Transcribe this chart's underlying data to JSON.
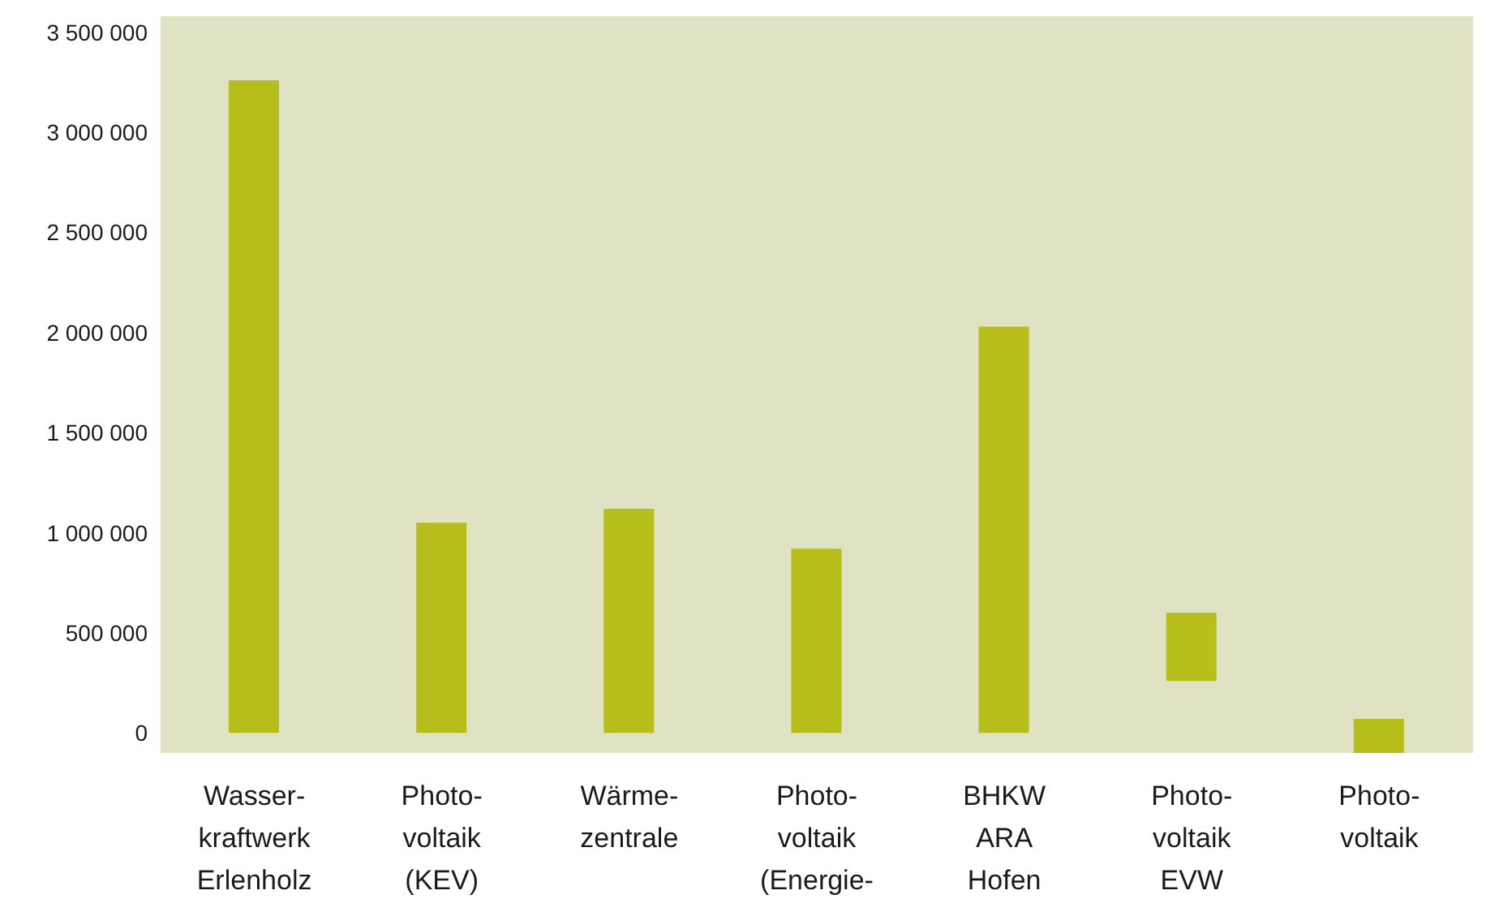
{
  "chart_data": {
    "type": "bar",
    "categories": [
      "Wasser-\nkraftwerk\nErlenholz",
      "Photo-\nvoltaik\n(KEV)",
      "Wärme-\nzentrale",
      "Photo-\nvoltaik\n(Energie-",
      "BHKW\nARA\nHofen",
      "Photo-\nvoltaik\nEVW",
      "Photo-\nvoltaik"
    ],
    "values": [
      3260000,
      1050000,
      1120000,
      920000,
      2030000,
      340000,
      170000
    ],
    "base": [
      0,
      0,
      0,
      0,
      0,
      260000,
      -100000
    ],
    "color": "#b7be19",
    "ylim": [
      -100000,
      3580000
    ],
    "yticks": [
      {
        "value": 0,
        "label": "0"
      },
      {
        "value": 500000,
        "label": "500 000"
      },
      {
        "value": 1000000,
        "label": "1 000 000"
      },
      {
        "value": 1500000,
        "label": "1 500 000"
      },
      {
        "value": 2000000,
        "label": "2 000 000"
      },
      {
        "value": 2500000,
        "label": "2 500 000"
      },
      {
        "value": 3000000,
        "label": "3 000 000"
      },
      {
        "value": 3500000,
        "label": "3 500 000"
      }
    ]
  }
}
